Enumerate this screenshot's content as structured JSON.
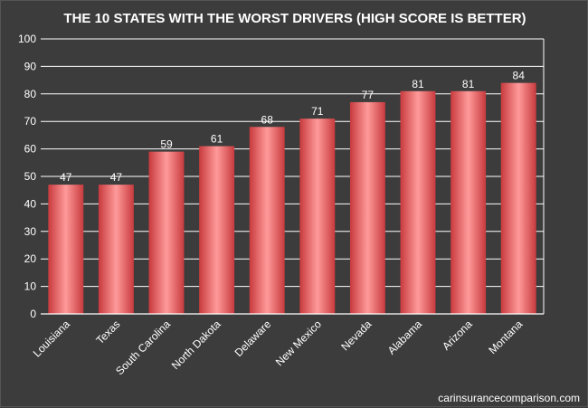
{
  "chart_data": {
    "type": "bar",
    "title": "THE 10 STATES WITH THE WORST DRIVERS (HIGH SCORE IS BETTER)",
    "categories": [
      "Louisiana",
      "Texas",
      "South Carolina",
      "North Dakota",
      "Delaware",
      "New Mexico",
      "Nevada",
      "Alabama",
      "Arizona",
      "Montana"
    ],
    "values": [
      47,
      47,
      59,
      61,
      68,
      71,
      77,
      81,
      81,
      84
    ],
    "xlabel": "",
    "ylabel": "",
    "ylim": [
      0,
      100
    ],
    "yticks": [
      0,
      10,
      20,
      30,
      40,
      50,
      60,
      70,
      80,
      90,
      100
    ],
    "grid": true,
    "bar_color": "#e8474a",
    "bar_highlight": "#ff9a9a",
    "background": "#3c3c3c",
    "plot_background": "#3c3c3c"
  },
  "source_text": "carinsurancecomparison.com"
}
